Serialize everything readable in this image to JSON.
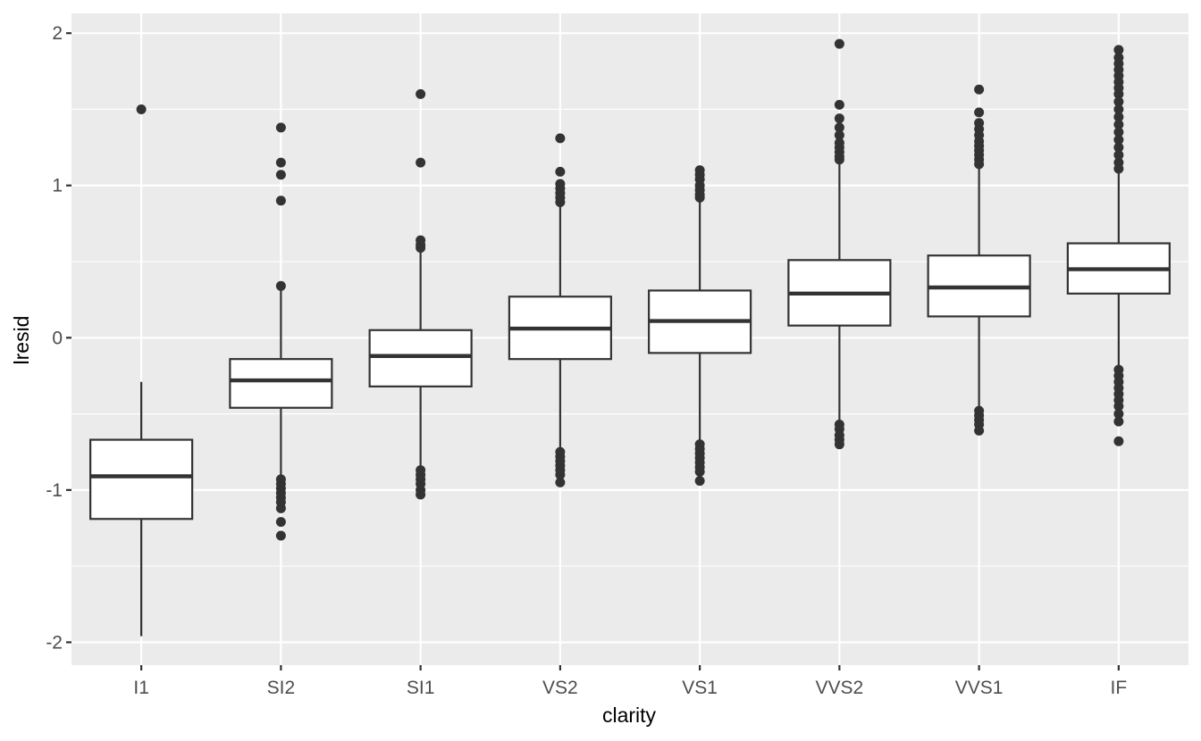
{
  "chart_data": {
    "type": "boxplot",
    "title": "",
    "xlabel": "clarity",
    "ylabel": "lresid",
    "ylim": [
      -2.15,
      2.13
    ],
    "y_ticks": [
      -2,
      -1,
      0,
      1,
      2
    ],
    "y_tick_labels": [
      "-2",
      "-1",
      "0",
      "1",
      "2"
    ],
    "grid": true,
    "legend": "none",
    "categories": [
      "I1",
      "SI2",
      "SI1",
      "VS2",
      "VS1",
      "VVS2",
      "VVS1",
      "IF"
    ],
    "boxes": [
      {
        "category": "I1",
        "lower_whisker": -1.96,
        "q1": -1.19,
        "median": -0.91,
        "q3": -0.67,
        "upper_whisker": -0.29,
        "outliers": [
          1.5
        ]
      },
      {
        "category": "SI2",
        "lower_whisker": -0.92,
        "q1": -0.46,
        "median": -0.28,
        "q3": -0.14,
        "upper_whisker": 0.33,
        "outliers": [
          1.38,
          1.15,
          1.07,
          0.9,
          0.34,
          -0.93,
          -0.96,
          -0.99,
          -1.02,
          -1.05,
          -1.08,
          -1.12,
          -1.21,
          -1.3
        ]
      },
      {
        "category": "SI1",
        "lower_whisker": -0.86,
        "q1": -0.32,
        "median": -0.12,
        "q3": 0.05,
        "upper_whisker": 0.57,
        "outliers": [
          1.6,
          1.15,
          0.64,
          0.61,
          0.59,
          -0.87,
          -0.9,
          -0.93,
          -0.96,
          -1.0,
          -1.03
        ]
      },
      {
        "category": "VS2",
        "lower_whisker": -0.74,
        "q1": -0.14,
        "median": 0.06,
        "q3": 0.27,
        "upper_whisker": 0.88,
        "outliers": [
          1.31,
          1.09,
          1.01,
          0.98,
          0.95,
          0.92,
          0.89,
          -0.75,
          -0.78,
          -0.81,
          -0.84,
          -0.87,
          -0.9,
          -0.95
        ]
      },
      {
        "category": "VS1",
        "lower_whisker": -0.69,
        "q1": -0.1,
        "median": 0.11,
        "q3": 0.31,
        "upper_whisker": 0.91,
        "outliers": [
          1.1,
          1.07,
          1.04,
          1.0,
          0.97,
          0.94,
          0.92,
          -0.7,
          -0.73,
          -0.76,
          -0.79,
          -0.82,
          -0.85,
          -0.88,
          -0.94
        ]
      },
      {
        "category": "VVS2",
        "lower_whisker": -0.55,
        "q1": 0.08,
        "median": 0.29,
        "q3": 0.51,
        "upper_whisker": 1.15,
        "outliers": [
          1.93,
          1.53,
          1.44,
          1.38,
          1.33,
          1.28,
          1.25,
          1.22,
          1.19,
          1.17,
          -0.57,
          -0.6,
          -0.64,
          -0.67,
          -0.7
        ]
      },
      {
        "category": "VVS1",
        "lower_whisker": -0.47,
        "q1": 0.14,
        "median": 0.33,
        "q3": 0.54,
        "upper_whisker": 1.12,
        "outliers": [
          1.63,
          1.48,
          1.41,
          1.37,
          1.33,
          1.29,
          1.26,
          1.23,
          1.2,
          1.17,
          1.14,
          -0.48,
          -0.51,
          -0.54,
          -0.57,
          -0.61
        ]
      },
      {
        "category": "IF",
        "lower_whisker": -0.2,
        "q1": 0.29,
        "median": 0.45,
        "q3": 0.62,
        "upper_whisker": 1.08,
        "outliers": [
          1.89,
          1.84,
          1.8,
          1.76,
          1.72,
          1.68,
          1.64,
          1.6,
          1.55,
          1.5,
          1.45,
          1.4,
          1.35,
          1.3,
          1.25,
          1.2,
          1.15,
          1.11,
          -0.21,
          -0.25,
          -0.29,
          -0.33,
          -0.37,
          -0.41,
          -0.45,
          -0.5,
          -0.55,
          -0.68
        ]
      }
    ],
    "colors": {
      "panel_background": "#EBEBEB",
      "grid": "#FFFFFF",
      "box_fill": "#FFFFFF",
      "box_line": "#333333",
      "outlier": "#333333",
      "tick_label": "#4D4D4D",
      "axis_title": "#000000"
    }
  }
}
